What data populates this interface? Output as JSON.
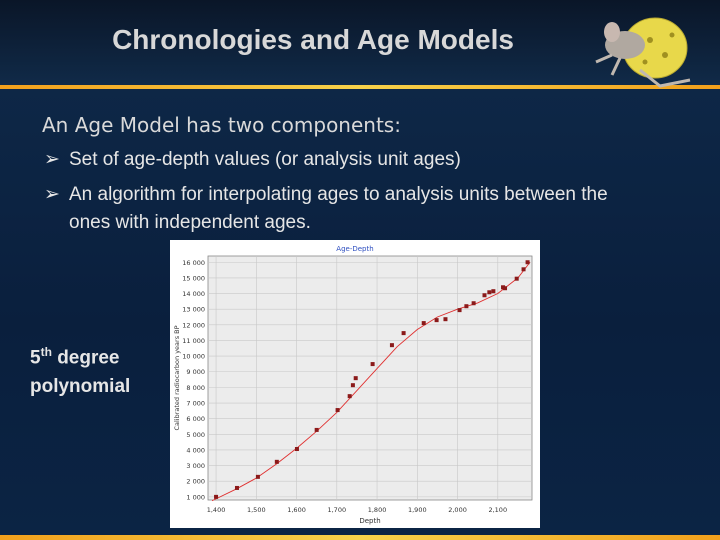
{
  "slide": {
    "title": "Chronologies and Age Models",
    "heading": "An Age Model has two components:",
    "bullets": [
      "Set of age-depth values (or analysis unit ages)",
      "An algorithm for interpolating ages to analysis units between the ones with independent ages."
    ],
    "side_label": {
      "number": "5",
      "suffix": "th",
      "rest": "degree",
      "line2": "polynomial"
    }
  },
  "chart_data": {
    "type": "scatter",
    "title": "Age-Depth",
    "x_label": "Depth",
    "y_label": "Calibrated radiocarbon years BP",
    "xlim": [
      1380,
      2185
    ],
    "ylim": [
      800,
      16400
    ],
    "xticks": [
      {
        "value": 1400,
        "label": "1,400"
      },
      {
        "value": 1500,
        "label": "1,500"
      },
      {
        "value": 1600,
        "label": "1,600"
      },
      {
        "value": 1700,
        "label": "1,700"
      },
      {
        "value": 1800,
        "label": "1,800"
      },
      {
        "value": 1900,
        "label": "1,900"
      },
      {
        "value": 2000,
        "label": "2,000"
      },
      {
        "value": 2100,
        "label": "2,100"
      }
    ],
    "yticks": [
      {
        "value": 1000,
        "label": "1 000"
      },
      {
        "value": 2000,
        "label": "2 000"
      },
      {
        "value": 3000,
        "label": "3 000"
      },
      {
        "value": 4000,
        "label": "4 000"
      },
      {
        "value": 5000,
        "label": "5 000"
      },
      {
        "value": 6000,
        "label": "6 000"
      },
      {
        "value": 7000,
        "label": "7 000"
      },
      {
        "value": 8000,
        "label": "8 000"
      },
      {
        "value": 9000,
        "label": "9 000"
      },
      {
        "value": 10000,
        "label": "10 000"
      },
      {
        "value": 11000,
        "label": "11 000"
      },
      {
        "value": 12000,
        "label": "12 000"
      },
      {
        "value": 13000,
        "label": "13 000"
      },
      {
        "value": 14000,
        "label": "14 000"
      },
      {
        "value": 15000,
        "label": "15 000"
      },
      {
        "value": 16000,
        "label": "16 000"
      }
    ],
    "grid": true,
    "points": {
      "color": "#8b1a1a",
      "x": [
        1400,
        1452,
        1504,
        1551,
        1601,
        1650,
        1702,
        1732,
        1740,
        1747,
        1789,
        1837,
        1866,
        1916,
        1948,
        1970,
        2005,
        2022,
        2040,
        2067,
        2079,
        2089,
        2113,
        2118,
        2147,
        2164,
        2174
      ],
      "y": [
        1000,
        1570,
        2280,
        3240,
        4060,
        5280,
        6550,
        7440,
        8140,
        8590,
        9490,
        10700,
        11470,
        12110,
        12300,
        12360,
        12940,
        13190,
        13380,
        13890,
        14080,
        14150,
        14400,
        14340,
        14950,
        15550,
        16000
      ]
    },
    "fit": {
      "color": "#e03030",
      "x": [
        1390,
        1450,
        1500,
        1550,
        1600,
        1650,
        1700,
        1750,
        1800,
        1850,
        1900,
        1950,
        2000,
        2050,
        2100,
        2150,
        2180
      ],
      "y": [
        750,
        1500,
        2200,
        3100,
        4100,
        5200,
        6400,
        7800,
        9200,
        10600,
        11700,
        12500,
        13000,
        13400,
        14000,
        15000,
        16000
      ]
    }
  }
}
